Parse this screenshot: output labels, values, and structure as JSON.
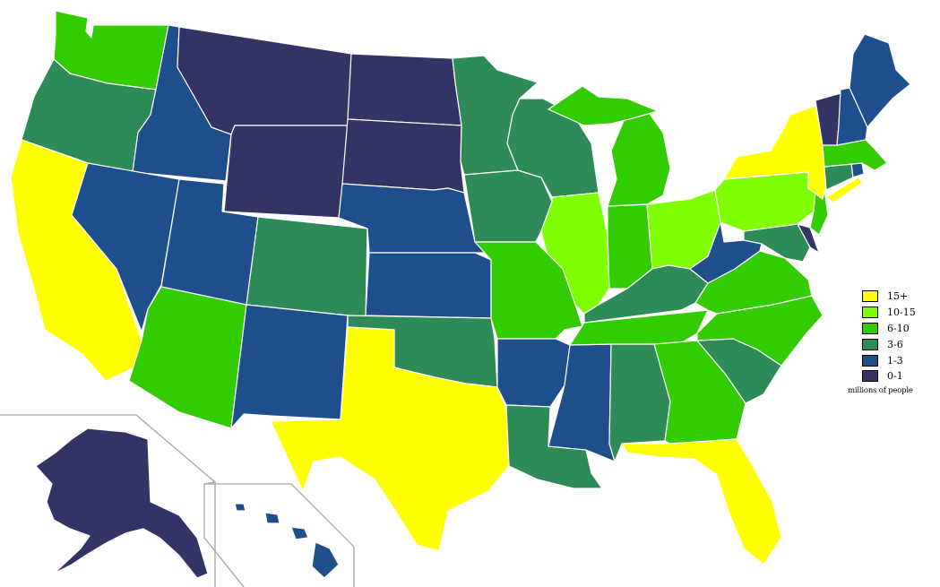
{
  "colors": {
    "c15": "#ffff00",
    "c10": "#7fff00",
    "c6": "#33cc00",
    "c3": "#2e8b57",
    "c1": "#1f4e8c",
    "c0": "#333366"
  },
  "legend": {
    "items": [
      {
        "label": "15+",
        "color": "#ffff00"
      },
      {
        "label": "10-15",
        "color": "#7fff00"
      },
      {
        "label": "6-10",
        "color": "#33cc00"
      },
      {
        "label": "3-6",
        "color": "#2e8b57"
      },
      {
        "label": "1-3",
        "color": "#1f4e8c"
      },
      {
        "label": "0-1",
        "color": "#333366"
      }
    ],
    "unit": "millions of people"
  }
}
